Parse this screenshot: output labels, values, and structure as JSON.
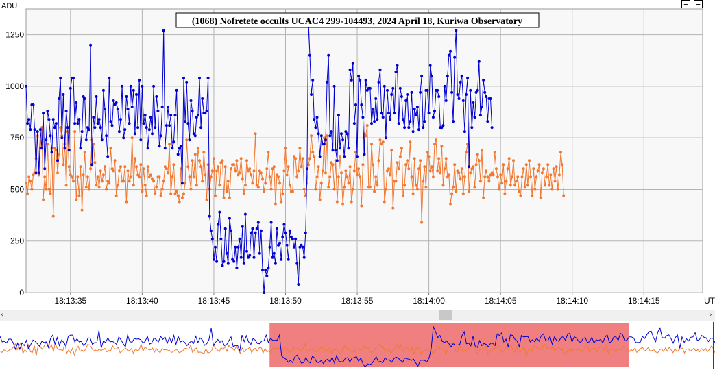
{
  "chart_data": {
    "type": "line",
    "title": "(1068) Nofretete occults UCAC4 299-104493, 2024 April 18, Kuriwa Observatory",
    "ylabel": "ADU",
    "xlabel": "UT",
    "ylim": [
      0,
      1375
    ],
    "y_ticks": [
      "0",
      "250",
      "500",
      "750",
      "1000",
      "1250"
    ],
    "x_ticks": [
      "18:13:35",
      "18:13:40",
      "18:13:45",
      "18:13:50",
      "18:13:55",
      "18:14:00",
      "18:14:05",
      "18:14:10",
      "18:14:15"
    ],
    "x_tick_seconds": [
      35,
      40,
      45,
      50,
      55,
      60,
      65,
      70,
      75
    ],
    "xlim_seconds": [
      31.9,
      79.1
    ],
    "grid": true,
    "sample_interval_s": 0.1,
    "series": [
      {
        "color": "#0000d0",
        "values": [
          1000,
          820,
          840,
          790,
          910,
          910,
          790,
          580,
          780,
          580,
          790,
          700,
          870,
          600,
          740,
          880,
          840,
          760,
          680,
          840,
          800,
          820,
          640,
          940,
          1040,
          750,
          960,
          700,
          880,
          800,
          690,
          990,
          1040,
          1040,
          820,
          920,
          820,
          840,
          700,
          780,
          950,
          940,
          740,
          800,
          790,
          1200,
          620,
          850,
          800,
          950,
          820,
          840,
          800,
          740,
          980,
          890,
          760,
          660,
          1040,
          830,
          810,
          930,
          910,
          920,
          890,
          780,
          840,
          1000,
          750,
          790,
          950,
          890,
          820,
          1000,
          900,
          980,
          770,
          960,
          800,
          1030,
          740,
          1000,
          820,
          860,
          800,
          700,
          790,
          850,
          770,
          1000,
          800,
          950,
          880,
          710,
          760,
          900,
          1270,
          700,
          810,
          900,
          810,
          860,
          700,
          730,
          860,
          980,
          670,
          700,
          710,
          530,
          1040,
          830,
          1020,
          820,
          740,
          930,
          880,
          770,
          760,
          850,
          860,
          1040,
          800,
          940,
          870,
          870,
          880,
          1040,
          370,
          300,
          260,
          160,
          220,
          150,
          330,
          390,
          260,
          130,
          150,
          310,
          190,
          140,
          360,
          300,
          160,
          150,
          220,
          120,
          220,
          260,
          170,
          320,
          140,
          380,
          200,
          170,
          180,
          290,
          310,
          170,
          290,
          310,
          340,
          190,
          300,
          110,
          0,
          110,
          80,
          120,
          220,
          340,
          170,
          190,
          140,
          310,
          230,
          240,
          160,
          270,
          330,
          290,
          230,
          160,
          300,
          270,
          260,
          220,
          260,
          140,
          40,
          220,
          230,
          220,
          170,
          290,
          600,
          1320,
          1150,
          960,
          1030,
          840,
          800,
          850,
          770,
          660,
          760,
          720,
          720,
          740,
          1020,
          1150,
          760,
          780,
          690,
          1000,
          690,
          640,
          860,
          700,
          770,
          740,
          660,
          780,
          770,
          700,
          1080,
          1030,
          1110,
          820,
          910,
          660,
          1050,
          1030,
          910,
          850,
          670,
          1030,
          980,
          990,
          990,
          820,
          890,
          830,
          940,
          840,
          1020,
          1080,
          870,
          850,
          1000,
          750,
          980,
          870,
          840,
          960,
          990,
          870,
          1070,
          1100,
          820,
          990,
          950,
          840,
          800,
          930,
          960,
          800,
          830,
          970,
          780,
          890,
          860,
          900,
          790,
          970,
          1050,
          800,
          830,
          980,
          980,
          870,
          1100,
          1050,
          850,
          880,
          980,
          980,
          950,
          800,
          800,
          810,
          1000,
          930,
          1050,
          1150,
          1170,
          970,
          830,
          1140,
          1270,
          960,
          940,
          1020,
          1050,
          930,
          780,
          960,
          1040,
          610,
          980,
          800,
          920,
          850,
          970,
          980,
          1120,
          860,
          900,
          1030,
          970,
          950,
          830,
          940,
          940,
          800
        ]
      },
      {
        "color": "#f07830",
        "values": [
          530,
          480,
          560,
          540,
          500,
          570,
          580,
          650,
          760,
          570,
          700,
          800,
          450,
          560,
          500,
          720,
          500,
          480,
          700,
          370,
          700,
          690,
          580,
          670,
          800,
          760,
          620,
          720,
          520,
          780,
          610,
          570,
          560,
          540,
          780,
          450,
          560,
          470,
          610,
          400,
          570,
          680,
          510,
          560,
          500,
          600,
          740,
          720,
          630,
          520,
          560,
          510,
          590,
          540,
          570,
          610,
          500,
          540,
          530,
          700,
          600,
          590,
          640,
          470,
          520,
          590,
          610,
          540,
          540,
          610,
          440,
          590,
          540,
          560,
          750,
          520,
          650,
          610,
          570,
          560,
          620,
          490,
          600,
          520,
          470,
          610,
          560,
          570,
          550,
          540,
          480,
          510,
          560,
          560,
          470,
          500,
          540,
          610,
          600,
          580,
          720,
          480,
          560,
          620,
          480,
          490,
          470,
          440,
          600,
          460,
          480,
          530,
          740,
          610,
          560,
          500,
          640,
          560,
          670,
          520,
          700,
          640,
          610,
          540,
          680,
          570,
          450,
          620,
          500,
          560,
          590,
          650,
          470,
          590,
          610,
          520,
          630,
          640,
          460,
          610,
          490,
          540,
          460,
          600,
          620,
          620,
          590,
          640,
          570,
          580,
          650,
          550,
          480,
          520,
          640,
          590,
          600,
          570,
          530,
          590,
          770,
          520,
          510,
          590,
          580,
          550,
          490,
          530,
          600,
          680,
          560,
          500,
          600,
          610,
          430,
          570,
          560,
          530,
          440,
          480,
          590,
          700,
          570,
          610,
          520,
          490,
          490,
          660,
          650,
          560,
          590,
          700,
          610,
          650,
          500,
          470,
          530,
          620,
          650,
          760,
          680,
          660,
          500,
          560,
          610,
          450,
          530,
          590,
          750,
          580,
          760,
          510,
          560,
          630,
          620,
          500,
          640,
          440,
          560,
          660,
          580,
          430,
          510,
          590,
          560,
          530,
          610,
          440,
          500,
          590,
          680,
          570,
          600,
          560,
          420,
          620,
          770,
          760,
          810,
          510,
          510,
          720,
          620,
          490,
          560,
          520,
          640,
          740,
          720,
          730,
          440,
          500,
          590,
          600,
          570,
          690,
          410,
          540,
          540,
          630,
          600,
          660,
          700,
          470,
          520,
          620,
          640,
          600,
          730,
          560,
          480,
          650,
          520,
          500,
          600,
          640,
          340,
          540,
          610,
          510,
          680,
          660,
          590,
          610,
          560,
          720,
          740,
          590,
          650,
          580,
          710,
          520,
          600,
          650,
          560,
          570,
          430,
          480,
          510,
          620,
          490,
          590,
          580,
          550,
          600,
          480,
          560,
          680,
          720,
          490,
          580,
          600,
          610,
          510,
          620,
          670,
          640,
          540,
          690,
          460,
          560,
          590,
          560,
          540,
          570,
          580,
          570,
          680,
          600,
          560,
          500,
          570,
          530,
          620,
          480,
          540,
          600,
          650,
          520,
          560,
          640,
          520,
          540,
          560,
          490,
          470,
          560,
          600,
          510,
          620,
          520,
          640,
          560,
          470,
          600,
          500,
          560,
          590,
          620,
          460,
          580,
          600,
          520,
          560,
          620,
          520,
          570,
          500,
          600,
          540,
          610,
          500,
          570,
          680,
          620,
          470
        ]
      }
    ],
    "overview": {
      "selection_fraction": [
        0.377,
        0.88
      ],
      "selection_color": "#f08080"
    }
  },
  "controls": {
    "zoom_in_label": "+",
    "zoom_out_label": "−",
    "scroll_left": "‹",
    "scroll_right": "›"
  }
}
